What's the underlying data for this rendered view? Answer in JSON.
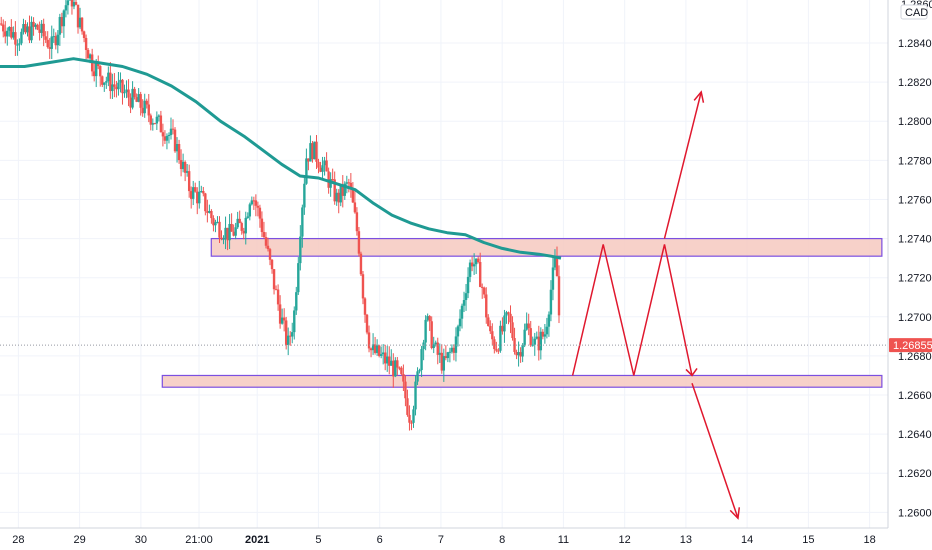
{
  "colors": {
    "up": "#26a69a",
    "down": "#ef5350",
    "ma": "#1f9a93",
    "zone_fill": "#f6c9c0",
    "zone_border": "#7b4fe0",
    "arrow": "#e0182e",
    "price_tag": "#ef5350",
    "grid": "#f0f3fa",
    "axis_text": "#131722"
  },
  "chart_data": {
    "type": "candlestick",
    "currency_label": "CAD",
    "top_label_partial": "1.28600",
    "ylim": [
      1.2592,
      1.2862
    ],
    "y_ticks": [
      "1.28400",
      "1.28200",
      "1.28000",
      "1.27800",
      "1.27600",
      "1.27400",
      "1.27200",
      "1.27000",
      "1.26800",
      "1.26600",
      "1.26400",
      "1.26200",
      "1.26000"
    ],
    "y_tick_values": [
      1.284,
      1.282,
      1.28,
      1.278,
      1.276,
      1.274,
      1.272,
      1.27,
      1.268,
      1.266,
      1.264,
      1.262,
      1.26
    ],
    "last_price": "1.26855",
    "last_price_value": 1.26855,
    "x_axis": {
      "domain_start": 0,
      "domain_end": 14.5,
      "ticks": [
        {
          "label": "28",
          "x": 0.3
        },
        {
          "label": "29",
          "x": 1.3
        },
        {
          "label": "30",
          "x": 2.3
        },
        {
          "label": "21:00",
          "x": 3.25
        },
        {
          "label": "2021",
          "x": 4.2,
          "bold": true
        },
        {
          "label": "5",
          "x": 5.2
        },
        {
          "label": "6",
          "x": 6.2
        },
        {
          "label": "7",
          "x": 7.2
        },
        {
          "label": "8",
          "x": 8.2
        },
        {
          "label": "11",
          "x": 9.2
        },
        {
          "label": "12",
          "x": 10.2
        },
        {
          "label": "13",
          "x": 11.2
        },
        {
          "label": "14",
          "x": 12.2
        },
        {
          "label": "15",
          "x": 13.2
        },
        {
          "label": "18",
          "x": 14.2
        }
      ]
    },
    "price_path": [
      [
        0.0,
        1.285
      ],
      [
        0.3,
        1.2843
      ],
      [
        0.6,
        1.2848
      ],
      [
        0.85,
        1.2838
      ],
      [
        1.05,
        1.2858
      ],
      [
        1.15,
        1.2865
      ],
      [
        1.3,
        1.285
      ],
      [
        1.5,
        1.283
      ],
      [
        1.7,
        1.2822
      ],
      [
        2.0,
        1.2815
      ],
      [
        2.3,
        1.2808
      ],
      [
        2.55,
        1.28
      ],
      [
        2.85,
        1.279
      ],
      [
        3.1,
        1.2765
      ],
      [
        3.3,
        1.276
      ],
      [
        3.5,
        1.2748
      ],
      [
        3.75,
        1.2742
      ],
      [
        4.0,
        1.2748
      ],
      [
        4.1,
        1.2765
      ],
      [
        4.25,
        1.275
      ],
      [
        4.4,
        1.2728
      ],
      [
        4.55,
        1.2705
      ],
      [
        4.7,
        1.2685
      ],
      [
        4.8,
        1.27
      ],
      [
        4.9,
        1.2745
      ],
      [
        5.0,
        1.2782
      ],
      [
        5.1,
        1.2786
      ],
      [
        5.3,
        1.2775
      ],
      [
        5.5,
        1.276
      ],
      [
        5.7,
        1.2768
      ],
      [
        5.85,
        1.274
      ],
      [
        5.95,
        1.2705
      ],
      [
        6.05,
        1.2683
      ],
      [
        6.2,
        1.268
      ],
      [
        6.4,
        1.2675
      ],
      [
        6.55,
        1.2668
      ],
      [
        6.7,
        1.2648
      ],
      [
        6.8,
        1.2665
      ],
      [
        6.95,
        1.27
      ],
      [
        7.1,
        1.2683
      ],
      [
        7.25,
        1.2675
      ],
      [
        7.45,
        1.2688
      ],
      [
        7.6,
        1.2715
      ],
      [
        7.7,
        1.273
      ],
      [
        7.85,
        1.272
      ],
      [
        8.0,
        1.269
      ],
      [
        8.1,
        1.2685
      ],
      [
        8.3,
        1.27
      ],
      [
        8.45,
        1.268
      ],
      [
        8.6,
        1.2695
      ],
      [
        8.75,
        1.2685
      ],
      [
        8.9,
        1.2692
      ],
      [
        9.0,
        1.2715
      ],
      [
        9.08,
        1.273
      ],
      [
        9.12,
        1.2705
      ],
      [
        9.16,
        1.2686
      ]
    ],
    "moving_average": [
      [
        0.0,
        1.2828
      ],
      [
        0.4,
        1.2828
      ],
      [
        0.8,
        1.283
      ],
      [
        1.2,
        1.2832
      ],
      [
        1.6,
        1.283
      ],
      [
        2.0,
        1.2828
      ],
      [
        2.4,
        1.2824
      ],
      [
        2.8,
        1.2818
      ],
      [
        3.2,
        1.281
      ],
      [
        3.6,
        1.28
      ],
      [
        4.0,
        1.2792
      ],
      [
        4.3,
        1.2785
      ],
      [
        4.6,
        1.2778
      ],
      [
        4.9,
        1.2772
      ],
      [
        5.2,
        1.2771
      ],
      [
        5.5,
        1.2768
      ],
      [
        5.8,
        1.2765
      ],
      [
        6.1,
        1.2758
      ],
      [
        6.4,
        1.2752
      ],
      [
        6.7,
        1.2748
      ],
      [
        7.0,
        1.2745
      ],
      [
        7.3,
        1.2743
      ],
      [
        7.6,
        1.2742
      ],
      [
        7.9,
        1.2738
      ],
      [
        8.2,
        1.2735
      ],
      [
        8.5,
        1.2733
      ],
      [
        8.8,
        1.2732
      ],
      [
        9.0,
        1.2731
      ],
      [
        9.16,
        1.273
      ]
    ],
    "zones": [
      {
        "x_start": 3.45,
        "x_end": 14.4,
        "y_low": 1.2731,
        "y_high": 1.274
      },
      {
        "x_start": 2.65,
        "x_end": 14.4,
        "y_low": 1.2664,
        "y_high": 1.267
      }
    ],
    "projection_path": [
      [
        9.35,
        1.267
      ],
      [
        9.85,
        1.2737
      ],
      [
        10.35,
        1.267
      ],
      [
        10.85,
        1.2737
      ],
      [
        11.3,
        1.267
      ]
    ],
    "arrows": [
      {
        "from": [
          10.85,
          1.274
        ],
        "to": [
          11.45,
          1.2815
        ]
      },
      {
        "from": [
          11.3,
          1.2666
        ],
        "to": [
          12.05,
          1.2597
        ]
      }
    ]
  }
}
